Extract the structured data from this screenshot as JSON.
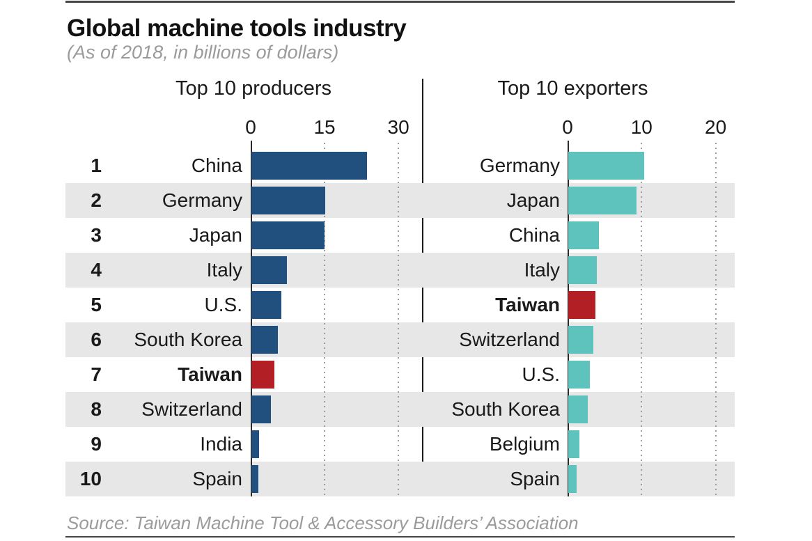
{
  "title": "Global machine tools industry",
  "subtitle": "(As of 2018, in billions of dollars)",
  "source": "Source: Taiwan Machine Tool & Accessory Builders’ Association",
  "colors": {
    "producer_bar": "#21507f",
    "exporter_bar": "#5fc3bd",
    "highlight_bar": "#b22025",
    "row_stripe": "#e7e7e7",
    "text_dark": "#1a1a1a",
    "text_muted": "#9b9b9b",
    "gridline": "#9e9e9e",
    "axis": "#2a2a2a"
  },
  "chart_data": [
    {
      "type": "bar",
      "title": "Top 10 producers",
      "orientation": "horizontal",
      "unit": "billions of dollars",
      "axis_range": [
        0,
        30
      ],
      "ticks": [
        "0",
        "15",
        "30"
      ],
      "tick_values": [
        0,
        15,
        30
      ],
      "grid": "dotted-vertical",
      "bar_color": "#21507f",
      "rows": [
        {
          "rank": "1",
          "label": "China",
          "value": 23.5,
          "highlight": false
        },
        {
          "rank": "2",
          "label": "Germany",
          "value": 15.0,
          "highlight": false
        },
        {
          "rank": "3",
          "label": "Japan",
          "value": 14.8,
          "highlight": false
        },
        {
          "rank": "4",
          "label": "Italy",
          "value": 7.2,
          "highlight": false
        },
        {
          "rank": "5",
          "label": "U.S.",
          "value": 6.1,
          "highlight": false
        },
        {
          "rank": "6",
          "label": "South Korea",
          "value": 5.4,
          "highlight": false
        },
        {
          "rank": "7",
          "label": "Taiwan",
          "value": 4.7,
          "highlight": true
        },
        {
          "rank": "8",
          "label": "Switzerland",
          "value": 3.9,
          "highlight": false
        },
        {
          "rank": "9",
          "label": "India",
          "value": 1.5,
          "highlight": false
        },
        {
          "rank": "10",
          "label": "Spain",
          "value": 1.4,
          "highlight": false
        }
      ]
    },
    {
      "type": "bar",
      "title": "Top 10 exporters",
      "orientation": "horizontal",
      "unit": "billions of dollars",
      "axis_range": [
        0,
        20
      ],
      "ticks": [
        "0",
        "10",
        "20"
      ],
      "tick_values": [
        0,
        10,
        20
      ],
      "grid": "dotted-vertical",
      "bar_color": "#5fc3bd",
      "rows": [
        {
          "label": "Germany",
          "value": 10.3,
          "highlight": false
        },
        {
          "label": "Japan",
          "value": 9.2,
          "highlight": false
        },
        {
          "label": "China",
          "value": 4.1,
          "highlight": false
        },
        {
          "label": "Italy",
          "value": 3.9,
          "highlight": false
        },
        {
          "label": "Taiwan",
          "value": 3.7,
          "highlight": true
        },
        {
          "label": "Switzerland",
          "value": 3.4,
          "highlight": false
        },
        {
          "label": "U.S.",
          "value": 2.9,
          "highlight": false
        },
        {
          "label": "South Korea",
          "value": 2.6,
          "highlight": false
        },
        {
          "label": "Belgium",
          "value": 1.5,
          "highlight": false
        },
        {
          "label": "Spain",
          "value": 1.1,
          "highlight": false
        }
      ]
    }
  ]
}
